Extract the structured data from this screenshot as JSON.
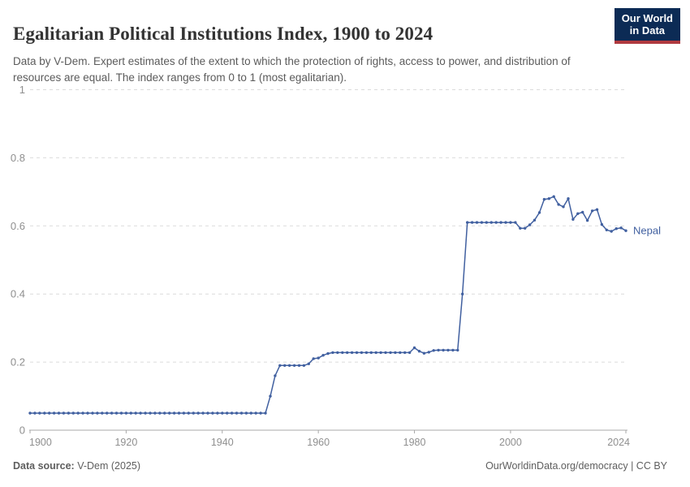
{
  "header": {
    "title": "Egalitarian Political Institutions Index, 1900 to 2024",
    "subtitle": "Data by V-Dem. Expert estimates of the extent to which the protection of rights, access to power, and distribution of resources are equal. The index ranges from 0 to 1 (most egalitarian).",
    "logo": {
      "line1": "Our World",
      "line2": "in Data"
    }
  },
  "footer": {
    "source_label": "Data source:",
    "source_value": " V-Dem (2025)",
    "right_text": "OurWorldinData.org/democracy | CC BY"
  },
  "colors": {
    "line": "#4160a0",
    "grid": "#dcdcdc",
    "axis": "#a8a8a8",
    "tick_label": "#8f8f8f",
    "logo_bg": "#0c2b55",
    "logo_red": "#b03a3f"
  },
  "chart_data": {
    "type": "line",
    "title": "Egalitarian Political Institutions Index, 1900 to 2024",
    "entity_label": "Nepal",
    "xlabel": "",
    "ylabel": "",
    "xlim": [
      1900,
      2024
    ],
    "ylim": [
      0,
      1
    ],
    "xticks": [
      1900,
      1920,
      1940,
      1960,
      1980,
      2000,
      2024
    ],
    "yticks": [
      0,
      0.2,
      0.4,
      0.6,
      0.8,
      1
    ],
    "grid": "horizontal-dashed",
    "legend_position": "end-of-line",
    "x": [
      1900,
      1901,
      1902,
      1903,
      1904,
      1905,
      1906,
      1907,
      1908,
      1909,
      1910,
      1911,
      1912,
      1913,
      1914,
      1915,
      1916,
      1917,
      1918,
      1919,
      1920,
      1921,
      1922,
      1923,
      1924,
      1925,
      1926,
      1927,
      1928,
      1929,
      1930,
      1931,
      1932,
      1933,
      1934,
      1935,
      1936,
      1937,
      1938,
      1939,
      1940,
      1941,
      1942,
      1943,
      1944,
      1945,
      1946,
      1947,
      1948,
      1949,
      1950,
      1951,
      1952,
      1953,
      1954,
      1955,
      1956,
      1957,
      1958,
      1959,
      1960,
      1961,
      1962,
      1963,
      1964,
      1965,
      1966,
      1967,
      1968,
      1969,
      1970,
      1971,
      1972,
      1973,
      1974,
      1975,
      1976,
      1977,
      1978,
      1979,
      1980,
      1981,
      1982,
      1983,
      1984,
      1985,
      1986,
      1987,
      1988,
      1989,
      1990,
      1991,
      1992,
      1993,
      1994,
      1995,
      1996,
      1997,
      1998,
      1999,
      2000,
      2001,
      2002,
      2003,
      2004,
      2005,
      2006,
      2007,
      2008,
      2009,
      2010,
      2011,
      2012,
      2013,
      2014,
      2015,
      2016,
      2017,
      2018,
      2019,
      2020,
      2021,
      2022,
      2023,
      2024
    ],
    "series": [
      {
        "name": "Nepal",
        "values": [
          0.05,
          0.05,
          0.05,
          0.05,
          0.05,
          0.05,
          0.05,
          0.05,
          0.05,
          0.05,
          0.05,
          0.05,
          0.05,
          0.05,
          0.05,
          0.05,
          0.05,
          0.05,
          0.05,
          0.05,
          0.05,
          0.05,
          0.05,
          0.05,
          0.05,
          0.05,
          0.05,
          0.05,
          0.05,
          0.05,
          0.05,
          0.05,
          0.05,
          0.05,
          0.05,
          0.05,
          0.05,
          0.05,
          0.05,
          0.05,
          0.05,
          0.05,
          0.05,
          0.05,
          0.05,
          0.05,
          0.05,
          0.05,
          0.05,
          0.05,
          0.1,
          0.16,
          0.19,
          0.19,
          0.19,
          0.19,
          0.19,
          0.19,
          0.195,
          0.21,
          0.212,
          0.22,
          0.225,
          0.228,
          0.228,
          0.228,
          0.228,
          0.228,
          0.228,
          0.228,
          0.228,
          0.228,
          0.228,
          0.228,
          0.228,
          0.228,
          0.228,
          0.228,
          0.228,
          0.228,
          0.242,
          0.232,
          0.226,
          0.229,
          0.234,
          0.235,
          0.235,
          0.235,
          0.235,
          0.235,
          0.4,
          0.61,
          0.61,
          0.61,
          0.61,
          0.61,
          0.61,
          0.61,
          0.61,
          0.61,
          0.61,
          0.61,
          0.593,
          0.593,
          0.603,
          0.617,
          0.639,
          0.678,
          0.68,
          0.686,
          0.663,
          0.656,
          0.68,
          0.619,
          0.636,
          0.64,
          0.616,
          0.644,
          0.648,
          0.604,
          0.588,
          0.584,
          0.592,
          0.594,
          0.586
        ]
      }
    ]
  }
}
